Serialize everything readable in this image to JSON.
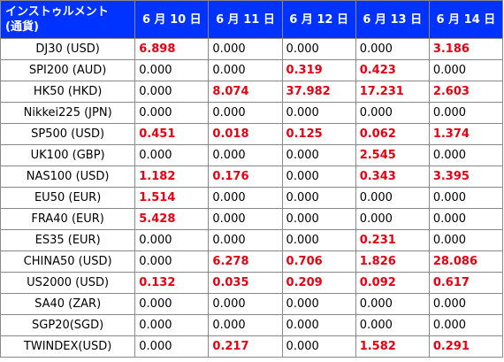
{
  "table": {
    "header": {
      "instrument_line1": "インストゥルメント",
      "instrument_line2": "(通貨)",
      "days": [
        "6 月 10 日",
        "6 月 11 日",
        "6 月 12 日",
        "6 月 13 日",
        "6 月 14 日"
      ]
    },
    "rows": [
      {
        "instrument": "DJ30 (USD)",
        "values": [
          "6.898",
          "0.000",
          "0.000",
          "0.000",
          "3.186"
        ],
        "highlight": [
          true,
          false,
          false,
          false,
          true
        ]
      },
      {
        "instrument": "SPI200 (AUD)",
        "values": [
          "0.000",
          "0.000",
          "0.319",
          "0.423",
          "0.000"
        ],
        "highlight": [
          false,
          false,
          true,
          true,
          false
        ]
      },
      {
        "instrument": "HK50 (HKD)",
        "values": [
          "0.000",
          "8.074",
          "37.982",
          "17.231",
          "2.603"
        ],
        "highlight": [
          false,
          true,
          true,
          true,
          true
        ]
      },
      {
        "instrument": "Nikkei225 (JPN)",
        "values": [
          "0.000",
          "0.000",
          "0.000",
          "0.000",
          "0.000"
        ],
        "highlight": [
          false,
          false,
          false,
          false,
          false
        ]
      },
      {
        "instrument": "SP500 (USD)",
        "values": [
          "0.451",
          "0.018",
          "0.125",
          "0.062",
          "1.374"
        ],
        "highlight": [
          true,
          true,
          true,
          true,
          true
        ]
      },
      {
        "instrument": "UK100 (GBP)",
        "values": [
          "0.000",
          "0.000",
          "0.000",
          "2.545",
          "0.000"
        ],
        "highlight": [
          false,
          false,
          false,
          true,
          false
        ]
      },
      {
        "instrument": "NAS100 (USD)",
        "values": [
          "1.182",
          "0.176",
          "0.000",
          "0.343",
          "3.395"
        ],
        "highlight": [
          true,
          true,
          false,
          true,
          true
        ]
      },
      {
        "instrument": "EU50 (EUR)",
        "values": [
          "1.514",
          "0.000",
          "0.000",
          "0.000",
          "0.000"
        ],
        "highlight": [
          true,
          false,
          false,
          false,
          false
        ]
      },
      {
        "instrument": "FRA40 (EUR)",
        "values": [
          "5.428",
          "0.000",
          "0.000",
          "0.000",
          "0.000"
        ],
        "highlight": [
          true,
          false,
          false,
          false,
          false
        ]
      },
      {
        "instrument": "ES35 (EUR)",
        "values": [
          "0.000",
          "0.000",
          "0.000",
          "0.231",
          "0.000"
        ],
        "highlight": [
          false,
          false,
          false,
          true,
          false
        ]
      },
      {
        "instrument": "CHINA50 (USD)",
        "values": [
          "0.000",
          "6.278",
          "0.706",
          "1.826",
          "28.086"
        ],
        "highlight": [
          false,
          true,
          true,
          true,
          true
        ]
      },
      {
        "instrument": "US2000 (USD)",
        "values": [
          "0.132",
          "0.035",
          "0.209",
          "0.092",
          "0.617"
        ],
        "highlight": [
          true,
          true,
          true,
          true,
          true
        ]
      },
      {
        "instrument": "SA40 (ZAR)",
        "values": [
          "0.000",
          "0.000",
          "0.000",
          "0.000",
          "0.000"
        ],
        "highlight": [
          false,
          false,
          false,
          false,
          false
        ]
      },
      {
        "instrument": "SGP20(SGD)",
        "values": [
          "0.000",
          "0.000",
          "0.000",
          "0.000",
          "0.000"
        ],
        "highlight": [
          false,
          false,
          false,
          false,
          false
        ]
      },
      {
        "instrument": "TWINDEX(USD)",
        "values": [
          "0.000",
          "0.217",
          "0.000",
          "1.582",
          "0.291"
        ],
        "highlight": [
          false,
          true,
          false,
          true,
          true
        ]
      }
    ],
    "colors": {
      "header_bg": "#0033ff",
      "header_text": "#ffffff",
      "highlight_text": "#e60012",
      "grid_line": "#8a8a8a"
    }
  }
}
